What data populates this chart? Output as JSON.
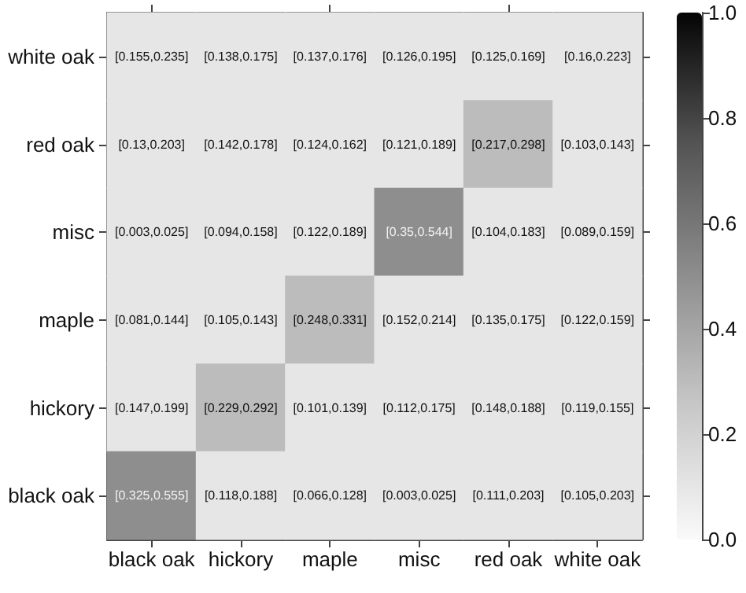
{
  "chart_data": {
    "type": "heatmap",
    "categories": [
      "black oak",
      "hickory",
      "maple",
      "misc",
      "red oak",
      "white oak"
    ],
    "y_categories": [
      "white oak",
      "red oak",
      "misc",
      "maple",
      "hickory",
      "black oak"
    ],
    "cells": [
      [
        0.1,
        0.1,
        0.1,
        0.1,
        0.1,
        0.1
      ],
      [
        0.1,
        0.1,
        0.1,
        0.1,
        0.3,
        0.1
      ],
      [
        0.1,
        0.1,
        0.1,
        0.5,
        0.1,
        0.1
      ],
      [
        0.1,
        0.1,
        0.3,
        0.1,
        0.1,
        0.1
      ],
      [
        0.1,
        0.3,
        0.1,
        0.1,
        0.1,
        0.1
      ],
      [
        0.5,
        0.1,
        0.1,
        0.1,
        0.1,
        0.1
      ]
    ],
    "cell_labels": [
      [
        "[0.155,0.235]",
        "[0.138,0.175]",
        "[0.137,0.176]",
        "[0.126,0.195]",
        "[0.125,0.169]",
        "[0.16,0.223]"
      ],
      [
        "[0.13,0.203]",
        "[0.142,0.178]",
        "[0.124,0.162]",
        "[0.121,0.189]",
        "[0.217,0.298]",
        "[0.103,0.143]"
      ],
      [
        "[0.003,0.025]",
        "[0.094,0.158]",
        "[0.122,0.189]",
        "[0.35,0.544]",
        "[0.104,0.183]",
        "[0.089,0.159]"
      ],
      [
        "[0.081,0.144]",
        "[0.105,0.143]",
        "[0.248,0.331]",
        "[0.152,0.214]",
        "[0.135,0.175]",
        "[0.122,0.159]"
      ],
      [
        "[0.147,0.199]",
        "[0.229,0.292]",
        "[0.101,0.139]",
        "[0.112,0.175]",
        "[0.148,0.188]",
        "[0.119,0.155]"
      ],
      [
        "[0.325,0.555]",
        "[0.118,0.188]",
        "[0.066,0.128]",
        "[0.003,0.025]",
        "[0.111,0.203]",
        "[0.105,0.203]"
      ]
    ],
    "clim": [
      0,
      1
    ],
    "cticks": [
      {
        "value": 0,
        "label": "0.0"
      },
      {
        "value": 0.2,
        "label": "0.2"
      },
      {
        "value": 0.4,
        "label": "0.4"
      },
      {
        "value": 0.6,
        "label": "0.6"
      },
      {
        "value": 0.8,
        "label": "0.8"
      },
      {
        "value": 1,
        "label": "1.0"
      }
    ]
  }
}
